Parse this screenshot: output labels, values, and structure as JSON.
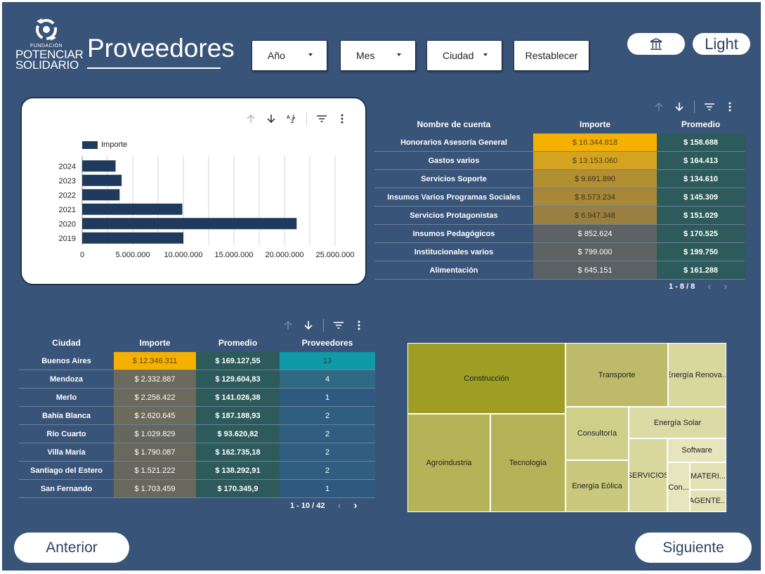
{
  "logo": {
    "line1": "FUNDACIÓN",
    "line2": "POTENCIAR",
    "line3": "SOLIDARIO"
  },
  "page_title": "Proveedores",
  "filters": [
    {
      "label": "Año"
    },
    {
      "label": "Mes"
    },
    {
      "label": "Ciudad"
    }
  ],
  "reset_label": "Restablecer",
  "header_buttons": {
    "home_icon": "bank-icon",
    "theme_label": "Light"
  },
  "bar_chart": {
    "legend": "Importe",
    "chart_data": {
      "type": "bar",
      "orientation": "horizontal",
      "categories": [
        "2024",
        "2023",
        "2022",
        "2021",
        "2020",
        "2019"
      ],
      "series": [
        {
          "name": "Importe",
          "values": [
            3300000,
            3900000,
            3700000,
            9900000,
            21200000,
            10000000
          ]
        }
      ],
      "xlim": [
        0,
        25000000
      ],
      "xticks": [
        "0",
        "5.000.000",
        "10.000.000",
        "15.000.000",
        "20.000.000",
        "25.000.000"
      ],
      "color": "#1f3a5c"
    }
  },
  "accounts_table": {
    "headers": [
      "Nombre de cuenta",
      "Importe",
      "Promedio"
    ],
    "rows": [
      {
        "name": "Honorarios Asesoría General",
        "importe": "$ 16.344.818",
        "promedio": "$ 158.688",
        "bg": "#f5b000",
        "fg": "#5a4a1a"
      },
      {
        "name": "Gastos varios",
        "importe": "$ 13.153.060",
        "promedio": "$ 164.413",
        "bg": "#d4a421",
        "fg": "#4a3f1f"
      },
      {
        "name": "Servicios Soporte",
        "importe": "$ 9.691.890",
        "promedio": "$ 134.610",
        "bg": "#b38f34",
        "fg": "#3c3420"
      },
      {
        "name": "Insumos Varios Programas Sociales",
        "importe": "$ 8.573.234",
        "promedio": "$ 145.309",
        "bg": "#a88838",
        "fg": "#3c3420"
      },
      {
        "name": "Servicios Protagonistas",
        "importe": "$ 6.947.348",
        "promedio": "$ 151.029",
        "bg": "#9a8040",
        "fg": "#3c3420"
      },
      {
        "name": "Insumos Pedagógicos",
        "importe": "$ 852.624",
        "promedio": "$ 170.525",
        "bg": "#5d6264",
        "fg": "#ffffff"
      },
      {
        "name": "Institucionales varios",
        "importe": "$ 799.000",
        "promedio": "$ 199.750",
        "bg": "#5d6264",
        "fg": "#ffffff"
      },
      {
        "name": "Alimentación",
        "importe": "$ 645.151",
        "promedio": "$ 161.288",
        "bg": "#5a6063",
        "fg": "#ffffff"
      }
    ],
    "promedio_bg": "#2d5a5a",
    "pager": "1 - 8 / 8"
  },
  "cities_table": {
    "headers": [
      "Ciudad",
      "Importe",
      "Promedio",
      "Proveedores"
    ],
    "rows": [
      {
        "city": "Buenos Aires",
        "importe": "$ 12.346.311",
        "promedio": "$ 169.127,55",
        "proveedores": "13",
        "bg": "#f5b000",
        "fg": "#5a4a1a",
        "pbg": "#0e9aa7",
        "pfg": "#1f4a55"
      },
      {
        "city": "Mendoza",
        "importe": "$ 2.332.887",
        "promedio": "$ 129.604,83",
        "proveedores": "4",
        "bg": "#6b6a5c",
        "fg": "#ffffff",
        "pbg": "#2f6883",
        "pfg": "#ffffff"
      },
      {
        "city": "Merlo",
        "importe": "$ 2.256.422",
        "promedio": "$ 141.026,38",
        "proveedores": "1",
        "bg": "#6b6a5c",
        "fg": "#ffffff",
        "pbg": "#2e5a7f",
        "pfg": "#ffffff"
      },
      {
        "city": "Bahía Blanca",
        "importe": "$ 2.620.645",
        "promedio": "$ 187.188,93",
        "proveedores": "2",
        "bg": "#6d6b5b",
        "fg": "#ffffff",
        "pbg": "#2f5e80",
        "pfg": "#ffffff"
      },
      {
        "city": "Río Cuarto",
        "importe": "$ 1.029.829",
        "promedio": "$ 93.620,82",
        "proveedores": "2",
        "bg": "#65665e",
        "fg": "#ffffff",
        "pbg": "#2f5e80",
        "pfg": "#ffffff"
      },
      {
        "city": "Villa María",
        "importe": "$ 1.790.087",
        "promedio": "$ 162.735,18",
        "proveedores": "2",
        "bg": "#69685c",
        "fg": "#ffffff",
        "pbg": "#2f5e80",
        "pfg": "#ffffff"
      },
      {
        "city": "Santiago del Estero",
        "importe": "$ 1.521.222",
        "promedio": "$ 138.292,91",
        "proveedores": "2",
        "bg": "#67675d",
        "fg": "#ffffff",
        "pbg": "#2f5e80",
        "pfg": "#ffffff"
      },
      {
        "city": "San Fernando",
        "importe": "$ 1.703.459",
        "promedio": "$ 170.345,9",
        "proveedores": "1",
        "bg": "#68685c",
        "fg": "#ffffff",
        "pbg": "#2e5a7f",
        "pfg": "#ffffff"
      }
    ],
    "promedio_bg": "#2d5a5a",
    "pager": "1 - 10 / 42"
  },
  "treemap": {
    "labels": {
      "construccion": "Construcción",
      "transporte": "Transporte",
      "energia_renovable": "Energía Renova...",
      "consultoria": "Consultoría",
      "energia_solar": "Energía Solar",
      "software": "Software",
      "agroindustria": "Agroindustria",
      "tecnologia": "Tecnología",
      "energia_eolica": "Energía Eólica",
      "servicios": "SERVICIOS",
      "con": "Con...",
      "materi": "MATERI...",
      "agente": "AGENTE..."
    },
    "colors": {
      "construccion": "#9e9d24",
      "transporte": "#bdbb6a",
      "energia_renovable": "#d8d79e",
      "consultoria": "#d0cf8a",
      "energia_solar": "#dcdba6",
      "software": "#e6e5bd",
      "agroindustria": "#b5b358",
      "tecnologia": "#b5b358",
      "energia_eolica": "#c9c87c",
      "servicios": "#d9d89e",
      "con": "#e6e5bd",
      "materi": "#e3e2b7",
      "agente": "#e3e2b7"
    }
  },
  "nav": {
    "prev_label": "Anterior",
    "next_label": "Siguiente"
  }
}
